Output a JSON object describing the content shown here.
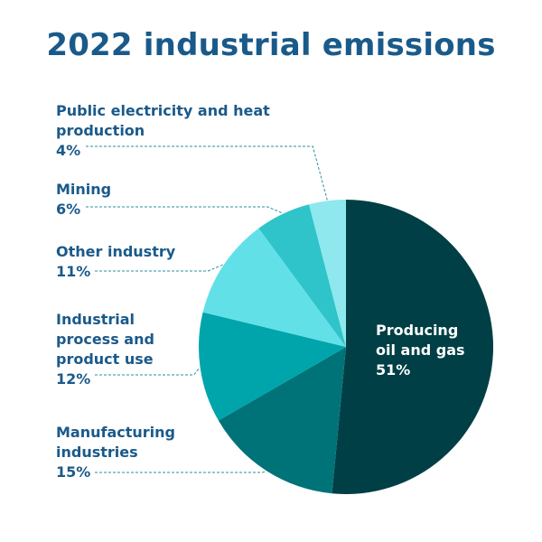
{
  "chart_data": {
    "type": "pie",
    "title": "2022 industrial emissions",
    "categories": [
      "Producing oil and gas",
      "Manufacturing industries",
      "Industrial process and product use",
      "Other industry",
      "Mining",
      "Public electricity and heat production"
    ],
    "values": [
      51,
      15,
      12,
      11,
      6,
      4
    ],
    "value_labels": [
      "51%",
      "15%",
      "12%",
      "11%",
      "6%",
      "4%"
    ],
    "start_angle_deg": 0,
    "direction": "clockwise",
    "colors": [
      "#003f45",
      "#007378",
      "#00a5ab",
      "#62e0e8",
      "#2fc4c9",
      "#8ee8ee"
    ],
    "label_color": "#1a5a8a"
  }
}
